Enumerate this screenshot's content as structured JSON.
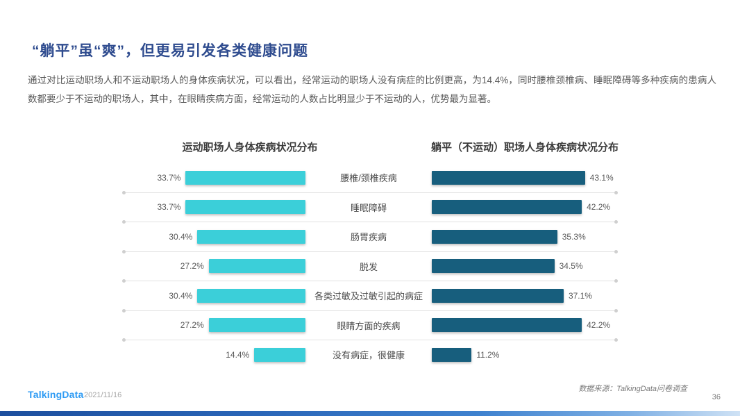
{
  "header": {
    "title": "“躺平”虽“爽”，但更易引发各类健康问题",
    "paragraph": "通过对比运动职场人和不运动职场人的身体疾病状况，可以看出，经常运动的职场人没有病症的比例更高，为14.4%，同时腰椎颈椎病、睡眠障碍等多种疾病的患病人数都要少于不运动的职场人，其中，在眼睛疾病方面，经常运动的人数占比明显少于不运动的人，优势最为显著。"
  },
  "chart_data": {
    "type": "bar",
    "layout": "tornado-comparison",
    "title_left": "运动职场人身体疾病状况分布",
    "title_right": "躺平（不运动）职场人身体疾病状况分布",
    "categories": [
      "腰椎/颈椎疾病",
      "睡眠障碍",
      "肠胃疾病",
      "脱发",
      "各类过敏及过敏引起的病症",
      "眼睛方面的疾病",
      "没有病症，很健康"
    ],
    "series": [
      {
        "name": "运动职场人身体疾病状况分布",
        "values": [
          33.7,
          33.7,
          30.4,
          27.2,
          30.4,
          27.2,
          14.4
        ],
        "labels": [
          "33.7%",
          "33.7%",
          "30.4%",
          "27.2%",
          "30.4%",
          "27.2%",
          "14.4%"
        ],
        "color": "#3bcfd9",
        "bar_direction": "right-aligned"
      },
      {
        "name": "躺平（不运动）职场人身体疾病状况分布",
        "values": [
          43.1,
          42.2,
          35.3,
          34.5,
          37.1,
          42.2,
          11.2
        ],
        "labels": [
          "43.1%",
          "42.2%",
          "35.3%",
          "34.5%",
          "37.1%",
          "42.2%",
          "11.2%"
        ],
        "color": "#175e7d",
        "bar_direction": "left-aligned"
      }
    ],
    "xlim": [
      0,
      50
    ],
    "value_suffix": "%",
    "grid": "row-dividers-with-end-dots"
  },
  "footer": {
    "logo": "TalkingData",
    "date": "2021/11/16",
    "source": "数据来源：TalkingData问卷调查",
    "page_number": "36"
  },
  "colors": {
    "title_text": "#2f4c8f",
    "exercise_bar": "#3bcfd9",
    "lying_bar": "#175e7d",
    "logo_blue": "#2e9bf4",
    "divider": "#e1e1e1",
    "bottom_gradient_left": "#1d4f9e",
    "bottom_gradient_mid": "#3f82cf",
    "bottom_gradient_right": "#cfe2f5"
  }
}
